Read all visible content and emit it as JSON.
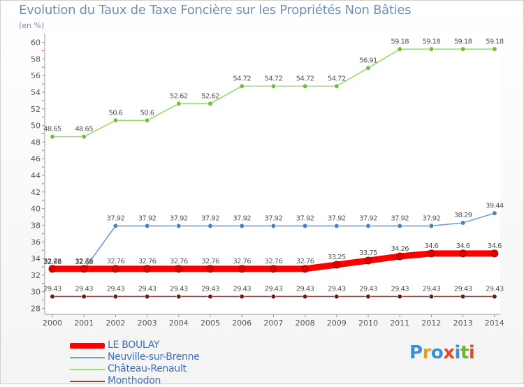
{
  "title": "Evolution du Taux de Taxe Foncière sur les Propriétés Non Bâties",
  "unit_label": "(en %)",
  "brand": {
    "text": "Proxiti",
    "letter_colors": [
      "#3a8fd6",
      "#e8a020",
      "#3a8fd6",
      "#e84a20",
      "#3a8fd6",
      "#6ab82a",
      "#e84a20"
    ]
  },
  "chart_data": {
    "type": "line",
    "title": "Evolution du Taux de Taxe Foncière sur les Propriétés Non Bâties",
    "ylabel": "(en %)",
    "xlabel": "",
    "ylim": [
      28,
      60
    ],
    "yticks": [
      28,
      30,
      32,
      34,
      36,
      38,
      40,
      42,
      44,
      46,
      48,
      50,
      52,
      54,
      56,
      58,
      60
    ],
    "categories": [
      "2000",
      "2001",
      "2002",
      "2003",
      "2004",
      "2005",
      "2006",
      "2007",
      "2008",
      "2009",
      "2010",
      "2011",
      "2012",
      "2013",
      "2014"
    ],
    "series": [
      {
        "name": "LE BOULAY",
        "color": "#ff0000",
        "marker": "#dd0000",
        "values": [
          32.76,
          32.76,
          32.76,
          32.76,
          32.76,
          32.76,
          32.76,
          32.76,
          32.76,
          33.25,
          33.75,
          34.26,
          34.6,
          34.6,
          34.6
        ],
        "labels": [
          "32.76",
          "32.76",
          "32.76",
          "32.76",
          "32.76",
          "32.76",
          "32.76",
          "32.76",
          "32.76",
          "33.25",
          "33.75",
          "34.26",
          "34.6",
          "34.6",
          "34.6"
        ]
      },
      {
        "name": "Neuville-sur-Brenne",
        "color": "#6f9fd0",
        "marker": "#3f85c8",
        "values": [
          32.68,
          32.68,
          37.92,
          37.92,
          37.92,
          37.92,
          37.92,
          37.92,
          37.92,
          37.92,
          37.92,
          37.92,
          37.92,
          38.29,
          39.44
        ],
        "labels": [
          "32.68",
          "32.68",
          "37.92",
          "37.92",
          "37.92",
          "37.92",
          "37.92",
          "37.92",
          "37.92",
          "37.92",
          "37.92",
          "37.92",
          "37.92",
          "38.29",
          "39.44"
        ]
      },
      {
        "name": "Château-Renault",
        "color": "#9cd870",
        "marker": "#72c038",
        "values": [
          48.65,
          48.65,
          50.6,
          50.6,
          52.62,
          52.62,
          54.72,
          54.72,
          54.72,
          54.72,
          56.91,
          59.18,
          59.18,
          59.18,
          59.18
        ],
        "labels": [
          "48.65",
          "48.65",
          "50.6",
          "50.6",
          "52.62",
          "52.62",
          "54.72",
          "54.72",
          "54.72",
          "54.72",
          "56.91",
          "59.18",
          "59.18",
          "59.18",
          "59.18"
        ]
      },
      {
        "name": "Monthodon",
        "color": "#8a4a4a",
        "marker": "#6a1a1a",
        "values": [
          29.43,
          29.43,
          29.43,
          29.43,
          29.43,
          29.43,
          29.43,
          29.43,
          29.43,
          29.43,
          29.43,
          29.43,
          29.43,
          29.43,
          29.43
        ],
        "labels": [
          "29.43",
          "29.43",
          "29.43",
          "29.43",
          "29.43",
          "29.43",
          "29.43",
          "29.43",
          "29.43",
          "29.43",
          "29.43",
          "29.43",
          "29.43",
          "29.43",
          "29.43"
        ]
      }
    ],
    "grid": false,
    "legend": "bottom-left"
  }
}
